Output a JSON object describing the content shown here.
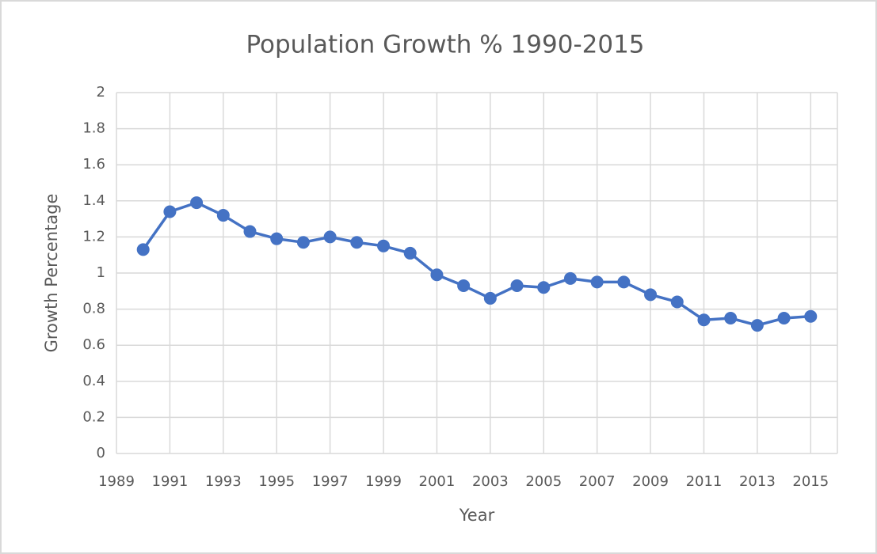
{
  "chart_data": {
    "type": "line",
    "title": "Population Growth % 1990-2015",
    "x_label": "Year",
    "y_label": "Growth Percentage",
    "x": [
      1990,
      1991,
      1992,
      1993,
      1994,
      1995,
      1996,
      1997,
      1998,
      1999,
      2000,
      2001,
      2002,
      2003,
      2004,
      2005,
      2006,
      2007,
      2008,
      2009,
      2010,
      2011,
      2012,
      2013,
      2014,
      2015
    ],
    "values": [
      1.13,
      1.34,
      1.39,
      1.32,
      1.23,
      1.19,
      1.17,
      1.2,
      1.17,
      1.15,
      1.11,
      0.99,
      0.93,
      0.86,
      0.93,
      0.92,
      0.97,
      0.95,
      0.95,
      0.88,
      0.84,
      0.74,
      0.75,
      0.71,
      0.75,
      0.76
    ],
    "color": "#4472c4",
    "xlim": [
      1989,
      2016
    ],
    "xticks": [
      1989,
      1991,
      1993,
      1995,
      1997,
      1999,
      2001,
      2003,
      2005,
      2007,
      2009,
      2011,
      2013,
      2015
    ],
    "ylim": [
      0,
      2
    ],
    "yticks": [
      0,
      0.2,
      0.4,
      0.6,
      0.8,
      1,
      1.2,
      1.4,
      1.6,
      1.8,
      2
    ],
    "grid": true
  }
}
